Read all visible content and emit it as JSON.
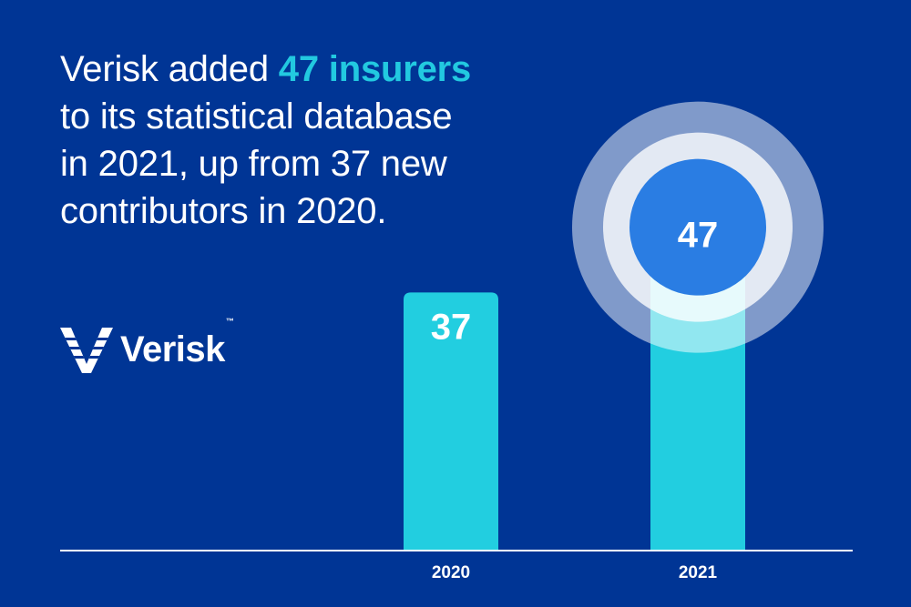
{
  "headline": {
    "line1_a": "Verisk added ",
    "line1_highlight": "47 insurers",
    "line2": "to its statistical database",
    "line3": "in 2021, up from 37 new",
    "line4": "contributors in 2020."
  },
  "logo": {
    "icon": "verisk-v-icon",
    "wordmark": "Verisk",
    "tm": "™"
  },
  "colors": {
    "background": "#003595",
    "bar": "#22cee0",
    "highlight_text": "#22c9e0",
    "circle_core": "#2a7de3",
    "text": "#ffffff"
  },
  "chart_data": {
    "type": "bar",
    "categories": [
      "2020",
      "2021"
    ],
    "values": [
      37,
      47
    ],
    "data_labels": [
      "37",
      "47"
    ],
    "highlight_index": 1,
    "ylim": [
      0,
      60
    ],
    "grid": false,
    "legend": "none"
  }
}
